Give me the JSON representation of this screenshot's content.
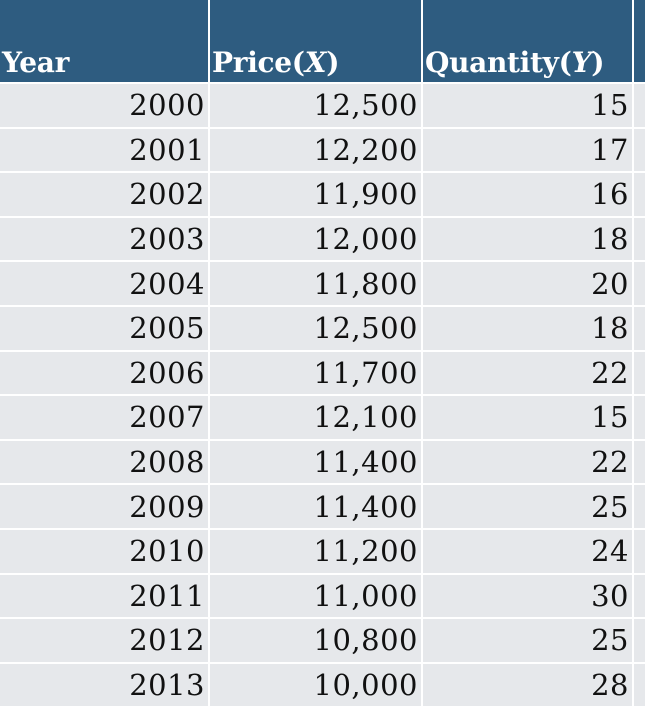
{
  "table": {
    "headers": {
      "year": "Year",
      "price_prefix": "Price(",
      "price_var": "X",
      "price_suffix": ")",
      "quantity_prefix": "Quantity(",
      "quantity_var": "Y",
      "quantity_suffix": ")"
    },
    "rows": [
      {
        "year": "2000",
        "price": "12,500",
        "quantity": "15"
      },
      {
        "year": "2001",
        "price": "12,200",
        "quantity": "17"
      },
      {
        "year": "2002",
        "price": "11,900",
        "quantity": "16"
      },
      {
        "year": "2003",
        "price": "12,000",
        "quantity": "18"
      },
      {
        "year": "2004",
        "price": "11,800",
        "quantity": "20"
      },
      {
        "year": "2005",
        "price": "12,500",
        "quantity": "18"
      },
      {
        "year": "2006",
        "price": "11,700",
        "quantity": "22"
      },
      {
        "year": "2007",
        "price": "12,100",
        "quantity": "15"
      },
      {
        "year": "2008",
        "price": "11,400",
        "quantity": "22"
      },
      {
        "year": "2009",
        "price": "11,400",
        "quantity": "25"
      },
      {
        "year": "2010",
        "price": "11,200",
        "quantity": "24"
      },
      {
        "year": "2011",
        "price": "11,000",
        "quantity": "30"
      },
      {
        "year": "2012",
        "price": "10,800",
        "quantity": "25"
      },
      {
        "year": "2013",
        "price": "10,000",
        "quantity": "28"
      }
    ]
  },
  "colors": {
    "header_bg": "#2e5c80",
    "header_text": "#ffffff",
    "row_bg": "#e6e8eb",
    "grid_line": "#ffffff"
  }
}
